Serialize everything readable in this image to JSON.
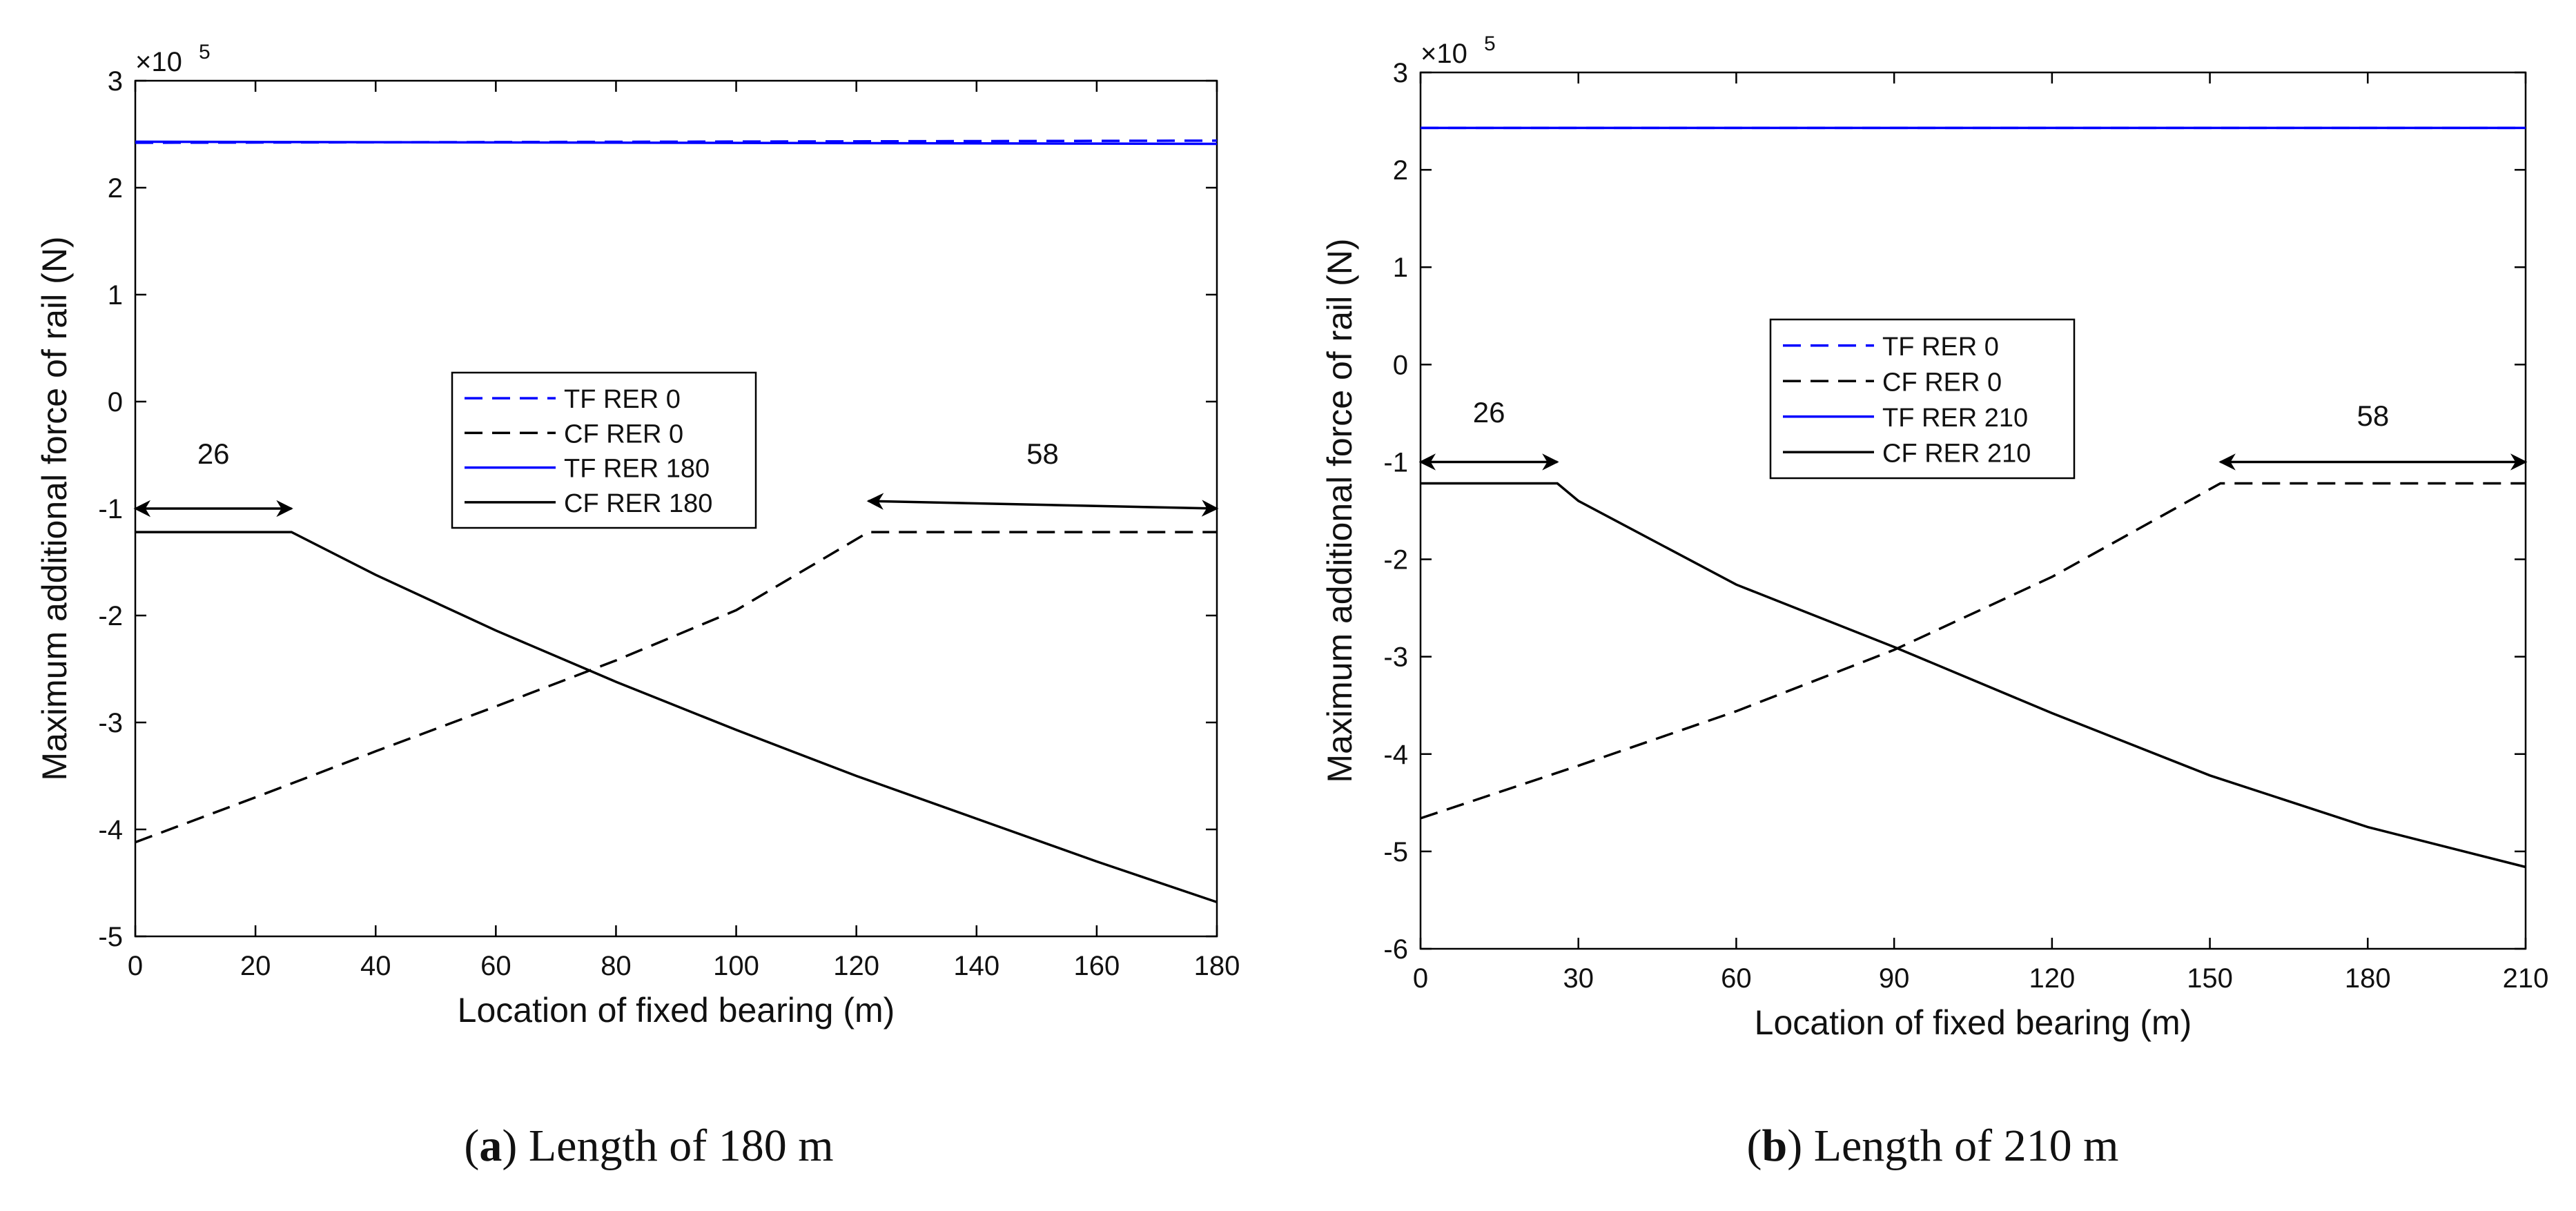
{
  "chart_data": [
    {
      "type": "line",
      "panel_label": "a",
      "caption": "Length of 180 m",
      "xlabel": "Location of fixed bearing (m)",
      "ylabel": "Maximum additional force of rail (N)",
      "y_multiplier": "×10",
      "y_exponent": "5",
      "xlim": [
        0,
        180
      ],
      "ylim": [
        -5,
        3
      ],
      "xticks": [
        0,
        20,
        40,
        60,
        80,
        100,
        120,
        140,
        160,
        180
      ],
      "yticks": [
        -5,
        -4,
        -3,
        -2,
        -1,
        0,
        1,
        2,
        3
      ],
      "legend_position": "center",
      "series": [
        {
          "name": "TF RER 0",
          "color": "#0000ff",
          "dash": "dashed",
          "x": [
            0,
            180
          ],
          "y": [
            2.42,
            2.44
          ]
        },
        {
          "name": "CF RER 0",
          "color": "#000000",
          "dash": "dashed",
          "x": [
            0,
            20,
            40,
            60,
            80,
            100,
            122,
            140,
            160,
            180
          ],
          "y": [
            -4.12,
            -3.7,
            -3.27,
            -2.85,
            -2.42,
            -1.95,
            -1.22,
            -1.22,
            -1.22,
            -1.22
          ]
        },
        {
          "name": "TF RER 180",
          "color": "#0000ff",
          "dash": "solid",
          "x": [
            0,
            180
          ],
          "y": [
            2.43,
            2.41
          ]
        },
        {
          "name": "CF RER 180",
          "color": "#000000",
          "dash": "solid",
          "x": [
            0,
            26,
            40,
            60,
            80,
            100,
            120,
            140,
            160,
            180
          ],
          "y": [
            -1.22,
            -1.22,
            -1.62,
            -2.14,
            -2.62,
            -3.07,
            -3.5,
            -3.9,
            -4.3,
            -4.68
          ]
        }
      ],
      "annotations": [
        {
          "text": "26",
          "x_from": 0,
          "x_to": 26,
          "y": -1.0
        },
        {
          "text": "58",
          "x_from": 122,
          "x_to": 180,
          "y": -0.93
        }
      ]
    },
    {
      "type": "line",
      "panel_label": "b",
      "caption": "Length of 210 m",
      "xlabel": "Location of fixed bearing (m)",
      "ylabel": "Maximum additional force of rail (N)",
      "y_multiplier": "×10",
      "y_exponent": "5",
      "xlim": [
        0,
        210
      ],
      "ylim": [
        -6,
        3
      ],
      "xticks": [
        0,
        30,
        60,
        90,
        120,
        150,
        180,
        210
      ],
      "yticks": [
        -6,
        -5,
        -4,
        -3,
        -2,
        -1,
        0,
        1,
        2,
        3
      ],
      "legend_position": "center-left",
      "series": [
        {
          "name": "TF RER 0",
          "color": "#0000ff",
          "dash": "dashed",
          "x": [
            0,
            210
          ],
          "y": [
            2.43,
            2.43
          ]
        },
        {
          "name": "CF RER 0",
          "color": "#000000",
          "dash": "dashed",
          "x": [
            0,
            30,
            60,
            90,
            120,
            152,
            180,
            210
          ],
          "y": [
            -4.66,
            -4.12,
            -3.56,
            -2.93,
            -2.18,
            -1.22,
            -1.22,
            -1.22
          ]
        },
        {
          "name": "TF RER 210",
          "color": "#0000ff",
          "dash": "solid",
          "x": [
            0,
            210
          ],
          "y": [
            2.43,
            2.43
          ]
        },
        {
          "name": "CF RER 210",
          "color": "#000000",
          "dash": "solid",
          "x": [
            0,
            26,
            30,
            60,
            90,
            120,
            150,
            180,
            210
          ],
          "y": [
            -1.22,
            -1.22,
            -1.4,
            -2.26,
            -2.9,
            -3.58,
            -4.22,
            -4.75,
            -5.16
          ]
        }
      ],
      "annotations": [
        {
          "text": "26",
          "x_from": 0,
          "x_to": 26,
          "y": -1.0
        },
        {
          "text": "58",
          "x_from": 152,
          "x_to": 210,
          "y": -1.0
        }
      ]
    }
  ]
}
